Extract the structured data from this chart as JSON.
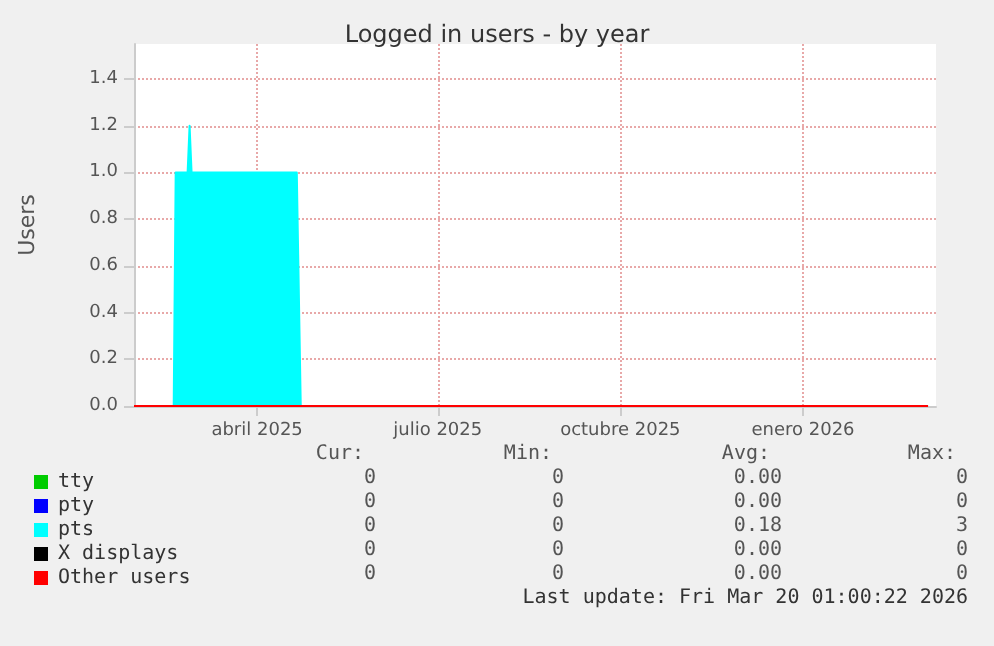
{
  "chart_data": {
    "type": "area",
    "title": "Logged in users - by year",
    "ylabel": "Users",
    "x": [
      "2025-02-13",
      "2025-03-05",
      "2025-03-06",
      "2025-03-12",
      "2025-03-13",
      "2025-03-14",
      "2025-05-06",
      "2025-05-08",
      "2026-03-20"
    ],
    "series": [
      {
        "name": "tty",
        "type": "line",
        "color": "#00cc00",
        "values": [
          null,
          null,
          null,
          null,
          null,
          null,
          null,
          null,
          null
        ]
      },
      {
        "name": "pty",
        "type": "line",
        "color": "#0000ff",
        "values": [
          null,
          null,
          null,
          null,
          null,
          null,
          null,
          null,
          null
        ]
      },
      {
        "name": "pts",
        "color": "#00ffff",
        "values": [
          0,
          0,
          1,
          1,
          1.2,
          1,
          1,
          0,
          0
        ]
      },
      {
        "name": "X displays",
        "type": "line",
        "color": "#000000",
        "values": [
          null,
          null,
          null,
          null,
          null,
          null,
          null,
          null,
          null
        ]
      },
      {
        "name": "Other users",
        "type": "line",
        "color": "#ff0000",
        "values": [
          0,
          0,
          0,
          0,
          0,
          0,
          0,
          0,
          0
        ]
      }
    ],
    "xlim": [
      "2025-02-13",
      "2026-03-24"
    ],
    "xticks": [
      {
        "value": "2025-04-16",
        "label": "abril 2025"
      },
      {
        "value": "2025-07-16",
        "label": "julio 2025"
      },
      {
        "value": "2025-10-16",
        "label": "octubre 2025"
      },
      {
        "value": "2026-01-16",
        "label": "enero 2026"
      }
    ],
    "ylim": [
      0,
      1.55
    ],
    "yticks": [
      {
        "value": 0,
        "label": "0.0"
      },
      0.2,
      0.4,
      0.6,
      0.8,
      {
        "value": 1,
        "label": "1.0"
      },
      1.2,
      1.4
    ],
    "grid": true,
    "legend": "bottom",
    "annotations": [
      "Cur:",
      "Min:",
      "Avg:",
      "Max:",
      "0",
      "0",
      "0.00",
      "0",
      "0",
      "0",
      "0.00",
      "0",
      "0",
      "0",
      "0.18",
      "3",
      "0",
      "0",
      "0.00",
      "0",
      "0",
      "0",
      "0.00",
      "0",
      "Last update: Fri Mar 20 01:00:22 2026"
    ]
  }
}
